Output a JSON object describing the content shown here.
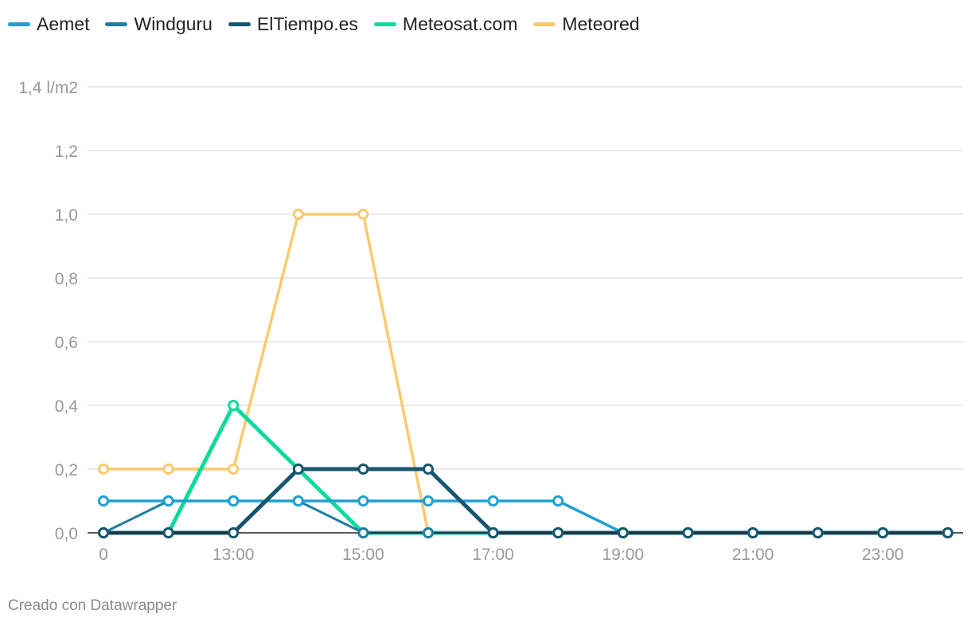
{
  "chart_data": {
    "type": "line",
    "x_tick_labels": [
      "0",
      "13:00",
      "15:00",
      "17:00",
      "19:00",
      "21:00",
      "23:00"
    ],
    "y_tick_labels": [
      "0,0",
      "0,2",
      "0,4",
      "0,6",
      "0,8",
      "1,0",
      "1,2",
      "1,4 l/m2"
    ],
    "y_ticks": [
      0,
      0.2,
      0.4,
      0.6,
      0.8,
      1.0,
      1.2,
      1.4
    ],
    "ylim": [
      0,
      1.4
    ],
    "x_points": 14,
    "grid": true,
    "legend_position": "top-left",
    "series": [
      {
        "name": "Meteored",
        "color": "#fbc96e",
        "width": 3.5,
        "values": [
          0.2,
          0.2,
          0.2,
          1.0,
          1.0,
          0,
          0,
          0,
          0,
          0,
          0,
          0,
          0,
          0
        ]
      },
      {
        "name": "Meteosat.com",
        "color": "#0cda9c",
        "width": 5,
        "values": [
          0,
          0,
          0.4,
          0.2,
          0,
          0,
          0,
          0,
          0,
          0,
          0,
          0,
          0,
          0
        ]
      },
      {
        "name": "Windguru",
        "color": "#1f7f9f",
        "width": 3,
        "values": [
          0,
          0.1,
          0.1,
          0.1,
          0,
          0,
          0,
          0,
          0,
          0,
          0,
          0,
          0,
          0
        ]
      },
      {
        "name": "Aemet",
        "color": "#1fa0d0",
        "width": 3.5,
        "values": [
          0.1,
          0.1,
          0.1,
          0.1,
          0.1,
          0.1,
          0.1,
          0.1,
          0,
          0,
          0,
          0,
          0,
          0
        ]
      },
      {
        "name": "ElTiempo.es",
        "color": "#17566e",
        "width": 5,
        "values": [
          0,
          0,
          0,
          0.2,
          0.2,
          0.2,
          0,
          0,
          0,
          0,
          0,
          0,
          0,
          0
        ]
      }
    ]
  },
  "legend": {
    "items": [
      {
        "label": "Aemet",
        "color": "#1fa0d0"
      },
      {
        "label": "Windguru",
        "color": "#1f7f9f"
      },
      {
        "label": "ElTiempo.es",
        "color": "#17566e"
      },
      {
        "label": "Meteosat.com",
        "color": "#0cda9c"
      },
      {
        "label": "Meteored",
        "color": "#fbc96e"
      }
    ]
  },
  "credit": "Creado con Datawrapper"
}
